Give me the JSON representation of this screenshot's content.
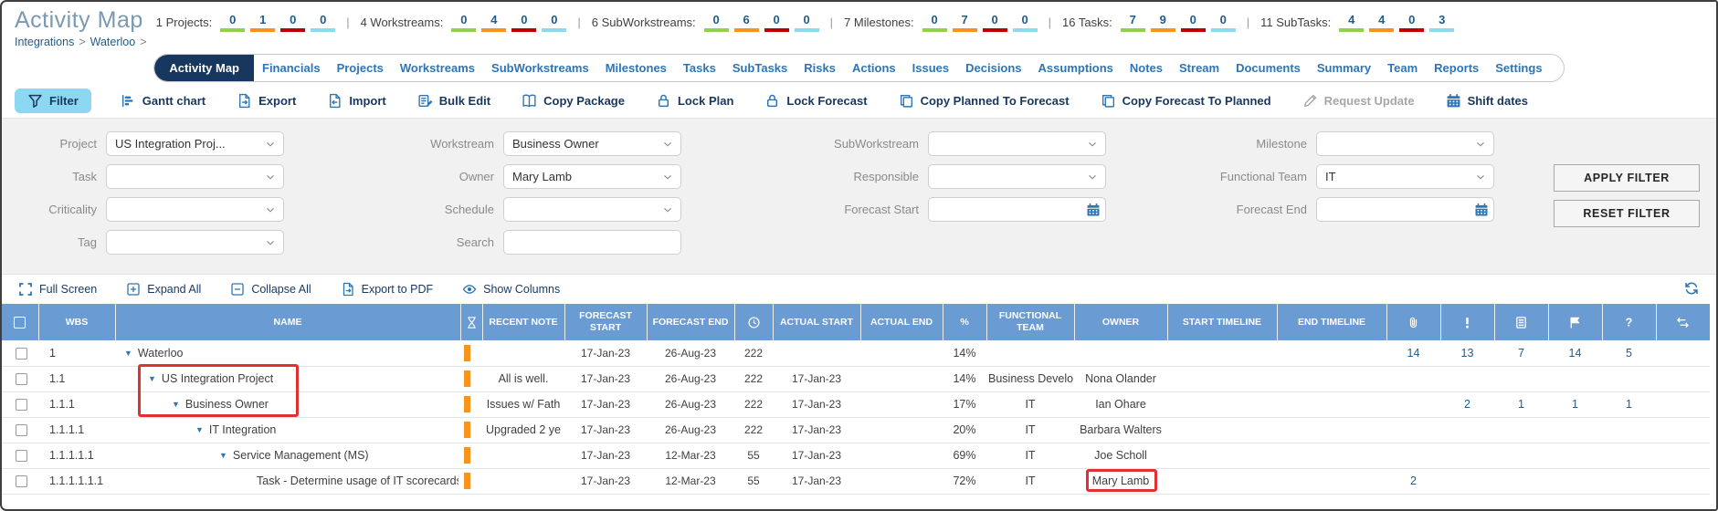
{
  "header": {
    "title": "Activity Map",
    "stats": [
      {
        "label": "1 Projects:",
        "values": [
          "0",
          "1",
          "0",
          "0"
        ]
      },
      {
        "label": "4 Workstreams:",
        "values": [
          "0",
          "4",
          "0",
          "0"
        ]
      },
      {
        "label": "6 SubWorkstreams:",
        "values": [
          "0",
          "6",
          "0",
          "0"
        ]
      },
      {
        "label": "7 Milestones:",
        "values": [
          "0",
          "7",
          "0",
          "0"
        ]
      },
      {
        "label": "16 Tasks:",
        "values": [
          "7",
          "9",
          "0",
          "0"
        ]
      },
      {
        "label": "11 SubTasks:",
        "values": [
          "4",
          "4",
          "0",
          "3"
        ]
      }
    ],
    "underline_colors": [
      "#92d050",
      "#f7941e",
      "#c00000",
      "#8ed8f0"
    ],
    "breadcrumb": [
      "Integrations",
      "Waterloo"
    ]
  },
  "tabs": {
    "active": "Activity Map",
    "items": [
      "Activity Map",
      "Financials",
      "Projects",
      "Workstreams",
      "SubWorkstreams",
      "Milestones",
      "Tasks",
      "SubTasks",
      "Risks",
      "Actions",
      "Issues",
      "Decisions",
      "Assumptions",
      "Notes",
      "Stream",
      "Documents",
      "Summary",
      "Team",
      "Reports",
      "Settings"
    ]
  },
  "toolbar": {
    "items": [
      {
        "label": "Filter",
        "icon": "funnel",
        "state": "active"
      },
      {
        "label": "Gantt chart",
        "icon": "gantt"
      },
      {
        "label": "Export",
        "icon": "export"
      },
      {
        "label": "Import",
        "icon": "import"
      },
      {
        "label": "Bulk Edit",
        "icon": "bulk-edit"
      },
      {
        "label": "Copy Package",
        "icon": "book"
      },
      {
        "label": "Lock Plan",
        "icon": "lock"
      },
      {
        "label": "Lock Forecast",
        "icon": "lock"
      },
      {
        "label": "Copy Planned To Forecast",
        "icon": "clipboard"
      },
      {
        "label": "Copy Forecast To Planned",
        "icon": "clipboard"
      },
      {
        "label": "Request Update",
        "icon": "pencil",
        "state": "disabled"
      },
      {
        "label": "Shift dates",
        "icon": "calendar"
      }
    ]
  },
  "filters": {
    "rows": [
      [
        {
          "label": "Project",
          "value": "US Integration Proj...",
          "type": "select"
        },
        {
          "label": "Workstream",
          "value": "Business Owner",
          "type": "select"
        },
        {
          "label": "SubWorkstream",
          "value": "",
          "type": "select"
        },
        {
          "label": "Milestone",
          "value": "",
          "type": "select"
        }
      ],
      [
        {
          "label": "Task",
          "value": "",
          "type": "select"
        },
        {
          "label": "Owner",
          "value": "Mary Lamb",
          "type": "select"
        },
        {
          "label": "Responsible",
          "value": "",
          "type": "select"
        },
        {
          "label": "Functional Team",
          "value": "IT",
          "type": "select"
        }
      ],
      [
        {
          "label": "Criticality",
          "value": "",
          "type": "select"
        },
        {
          "label": "Schedule",
          "value": "",
          "type": "select"
        },
        {
          "label": "Forecast Start",
          "value": "",
          "type": "date"
        },
        {
          "label": "Forecast End",
          "value": "",
          "type": "date"
        }
      ],
      [
        {
          "label": "Tag",
          "value": "",
          "type": "select"
        },
        {
          "label": "Search",
          "value": "",
          "type": "text"
        },
        null,
        null
      ]
    ],
    "apply_label": "APPLY FILTER",
    "reset_label": "RESET FILTER"
  },
  "grid_toolbar": {
    "items": [
      {
        "label": "Full Screen",
        "icon": "fullscreen"
      },
      {
        "label": "Expand All",
        "icon": "plus-box"
      },
      {
        "label": "Collapse All",
        "icon": "minus-box"
      },
      {
        "label": "Export to PDF",
        "icon": "export"
      },
      {
        "label": "Show Columns",
        "icon": "eye"
      }
    ],
    "right_icon": "refresh"
  },
  "table": {
    "columns": [
      {
        "type": "check"
      },
      {
        "type": "text",
        "label": "WBS"
      },
      {
        "type": "text",
        "label": "NAME"
      },
      {
        "type": "icon",
        "icon": "hourglass"
      },
      {
        "type": "text",
        "label": "RECENT NOTE"
      },
      {
        "type": "text",
        "label": "FORECAST START"
      },
      {
        "type": "text",
        "label": "FORECAST END"
      },
      {
        "type": "icon",
        "icon": "clock"
      },
      {
        "type": "text",
        "label": "ACTUAL START"
      },
      {
        "type": "text",
        "label": "ACTUAL END"
      },
      {
        "type": "text",
        "label": "%"
      },
      {
        "type": "text",
        "label": "FUNCTIONAL TEAM"
      },
      {
        "type": "text",
        "label": "OWNER"
      },
      {
        "type": "text",
        "label": "START TIMELINE"
      },
      {
        "type": "text",
        "label": "END TIMELINE"
      },
      {
        "type": "icon",
        "icon": "paperclip"
      },
      {
        "type": "icon",
        "icon": "exclamation"
      },
      {
        "type": "icon",
        "icon": "doc-lines"
      },
      {
        "type": "icon",
        "icon": "flag"
      },
      {
        "type": "icon",
        "icon": "question"
      },
      {
        "type": "icon",
        "icon": "swap"
      }
    ],
    "rows": [
      {
        "wbs": "1",
        "name": "Waterloo",
        "indent": 0,
        "caret": true,
        "note": "",
        "forecast_start": "17-Jan-23",
        "forecast_end": "26-Aug-23",
        "duration": "222",
        "actual_start": "",
        "actual_end": "",
        "percent": "14%",
        "team": "",
        "owner": "",
        "counts": [
          "14",
          "13",
          "7",
          "14",
          "5",
          ""
        ]
      },
      {
        "wbs": "1.1",
        "name": "US Integration Project",
        "indent": 1,
        "caret": true,
        "note": "All is well.",
        "forecast_start": "17-Jan-23",
        "forecast_end": "26-Aug-23",
        "duration": "222",
        "actual_start": "17-Jan-23",
        "actual_end": "",
        "percent": "14%",
        "team": "Business Develo",
        "owner": "Nona Olander",
        "counts": [
          "",
          "",
          "",
          "",
          "",
          ""
        ]
      },
      {
        "wbs": "1.1.1",
        "name": "Business Owner",
        "indent": 2,
        "caret": true,
        "note": "Issues w/ Fath",
        "forecast_start": "17-Jan-23",
        "forecast_end": "26-Aug-23",
        "duration": "222",
        "actual_start": "17-Jan-23",
        "actual_end": "",
        "percent": "17%",
        "team": "IT",
        "owner": "Ian Ohare",
        "counts": [
          "",
          "2",
          "1",
          "1",
          "1",
          ""
        ]
      },
      {
        "wbs": "1.1.1.1",
        "name": "IT Integration",
        "indent": 3,
        "caret": true,
        "note": "Upgraded 2 ye",
        "forecast_start": "17-Jan-23",
        "forecast_end": "26-Aug-23",
        "duration": "222",
        "actual_start": "17-Jan-23",
        "actual_end": "",
        "percent": "20%",
        "team": "IT",
        "owner": "Barbara Walters",
        "counts": [
          "",
          "",
          "",
          "",
          "",
          ""
        ]
      },
      {
        "wbs": "1.1.1.1.1",
        "name": "Service Management (MS)",
        "indent": 4,
        "caret": true,
        "note": "",
        "forecast_start": "17-Jan-23",
        "forecast_end": "12-Mar-23",
        "duration": "55",
        "actual_start": "17-Jan-23",
        "actual_end": "",
        "percent": "69%",
        "team": "IT",
        "owner": "Joe Scholl",
        "counts": [
          "",
          "",
          "",
          "",
          "",
          ""
        ]
      },
      {
        "wbs": "1.1.1.1.1.1",
        "name": "Task - Determine usage of IT scorecards and scl",
        "indent": 5,
        "caret": false,
        "note": "",
        "forecast_start": "17-Jan-23",
        "forecast_end": "12-Mar-23",
        "duration": "55",
        "actual_start": "17-Jan-23",
        "actual_end": "",
        "percent": "72%",
        "team": "IT",
        "owner": "Mary Lamb",
        "counts": [
          "2",
          "",
          "",
          "",
          "",
          ""
        ]
      }
    ]
  },
  "colors": {
    "table_header": "#6a9bd3",
    "toolbar_blue": "#2e75b6",
    "navy": "#17375e",
    "filter_button_bg": "#8dd7f3",
    "status_bar_orange": "#f7941e",
    "annotation_red": "#e03131",
    "count_blue": "#1f5c8b"
  }
}
